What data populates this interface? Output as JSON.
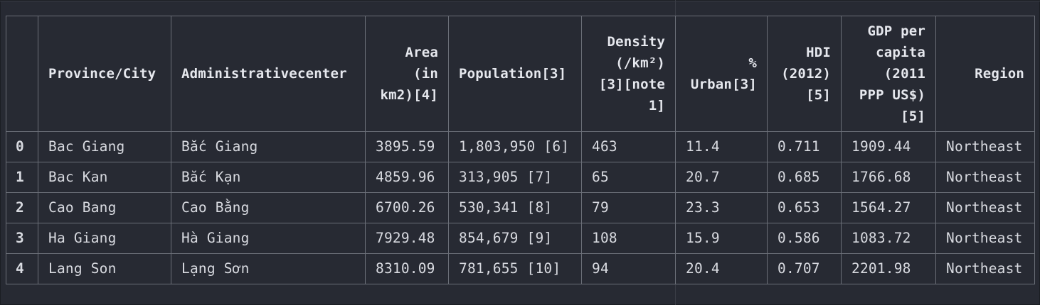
{
  "table": {
    "columns": [
      "",
      "Province/City",
      "Administrativecenter",
      "Area\n(in\nkm2)[4]",
      "Population[3]",
      "Density\n(/km²)\n[3][note\n1]",
      "%\nUrban[3]",
      "HDI\n(2012)\n[5]",
      "GDP per\ncapita\n(2011\nPPP US$)\n[5]",
      "Region"
    ],
    "rows": [
      [
        "0",
        "Bac Giang",
        "Bắc Giang",
        "3895.59",
        "1,803,950 [6]",
        "463",
        "11.4",
        "0.711",
        "1909.44",
        "Northeast"
      ],
      [
        "1",
        "Bac Kan",
        "Bắc Kạn",
        "4859.96",
        "313,905 [7]",
        "65",
        "20.7",
        "0.685",
        "1766.68",
        "Northeast"
      ],
      [
        "2",
        "Cao Bang",
        "Cao Bằng",
        "6700.26",
        "530,341 [8]",
        "79",
        "23.3",
        "0.653",
        "1564.27",
        "Northeast"
      ],
      [
        "3",
        "Ha Giang",
        "Hà Giang",
        "7929.48",
        "854,679 [9]",
        "108",
        "15.9",
        "0.586",
        "1083.72",
        "Northeast"
      ],
      [
        "4",
        "Lang Son",
        "Lạng Sơn",
        "8310.09",
        "781,655 [10]",
        "94",
        "20.4",
        "0.707",
        "2201.98",
        "Northeast"
      ]
    ]
  }
}
